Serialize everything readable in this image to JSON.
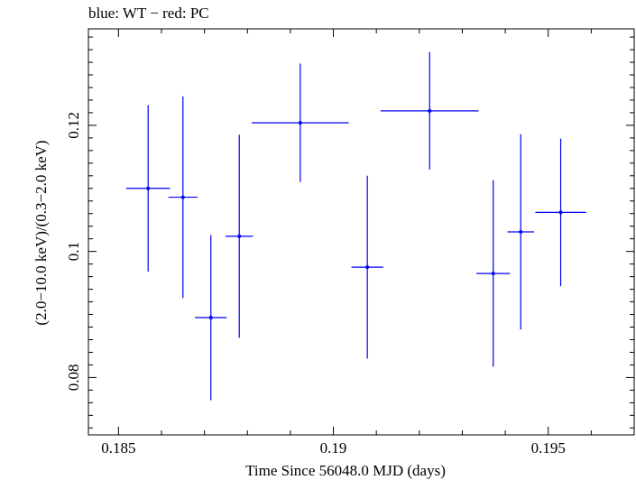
{
  "chart_data": {
    "type": "scatter",
    "title": "blue: WT − red: PC",
    "xlabel": "Time Since 56048.0 MJD (days)",
    "ylabel": "(2.0−10.0 keV)/(0.3−2.0 keV)",
    "xlim": [
      0.1843,
      0.197
    ],
    "ylim": [
      0.0709,
      0.1353
    ],
    "x_ticks": [
      0.185,
      0.19,
      0.195
    ],
    "x_tick_labels": [
      "0.185",
      "0.19",
      "0.195"
    ],
    "y_ticks": [
      0.08,
      0.1,
      0.12
    ],
    "y_tick_labels": [
      "0.08",
      "0.1",
      "0.12"
    ],
    "x_minor_step": 0.001,
    "y_minor_step": 0.002,
    "grid": false,
    "series": [
      {
        "color": "#0000ee",
        "points": [
          {
            "x": 0.18569,
            "xerr": 0.00051,
            "y": 0.11,
            "yerr": 0.0132
          },
          {
            "x": 0.1865,
            "xerr": 0.00034,
            "y": 0.1086,
            "yerr": 0.016
          },
          {
            "x": 0.18715,
            "xerr": 0.00037,
            "y": 0.0895,
            "yerr": 0.0131
          },
          {
            "x": 0.18781,
            "xerr": 0.00032,
            "y": 0.1024,
            "yerr": 0.0161
          },
          {
            "x": 0.18923,
            "xerr": 0.00113,
            "y": 0.1204,
            "yerr": 0.0094
          },
          {
            "x": 0.19079,
            "xerr": 0.00037,
            "y": 0.0975,
            "yerr": 0.0145
          },
          {
            "x": 0.19224,
            "xerr": 0.00114,
            "y": 0.1223,
            "yerr": 0.0093
          },
          {
            "x": 0.19372,
            "xerr": 0.00039,
            "y": 0.0965,
            "yerr": 0.0148
          },
          {
            "x": 0.19436,
            "xerr": 0.00031,
            "y": 0.1031,
            "yerr": 0.0155
          },
          {
            "x": 0.19529,
            "xerr": 0.00059,
            "y": 0.1062,
            "yerr": 0.0117
          }
        ]
      }
    ]
  }
}
